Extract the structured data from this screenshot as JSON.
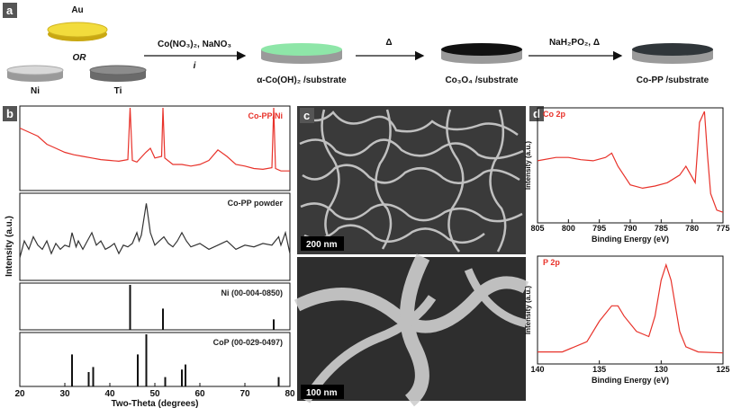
{
  "panel_a": {
    "label": "a",
    "substrates": {
      "au": "Au",
      "or": "OR",
      "ni": "Ni",
      "ti": "Ti"
    },
    "steps": [
      {
        "reagent": "Co(NO₃)₂, NaNO₃",
        "note": "i",
        "product": "α-Co(OH)₂ /substrate"
      },
      {
        "reagent": "Δ",
        "product": "Co₃O₄ /substrate"
      },
      {
        "reagent": "NaH₂PO₂, Δ",
        "product": "Co-PP /substrate"
      }
    ]
  },
  "panel_b": {
    "label": "b",
    "x_label": "Two-Theta (degrees)",
    "y_label": "Intensity (a.u.)",
    "xlim": [
      20,
      80
    ],
    "xticks": [
      20,
      30,
      40,
      50,
      60,
      70,
      80
    ],
    "plots": [
      {
        "name": "Co-PP/Ni",
        "color": "#e8322a",
        "kind": "line",
        "ylim": [
          0,
          100
        ],
        "x": [
          20,
          22,
          24,
          26,
          28,
          30,
          32,
          34,
          36,
          38,
          40,
          42,
          44,
          44.5,
          45,
          46,
          48,
          49,
          50,
          51.5,
          51.8,
          52.2,
          54,
          56,
          58,
          60,
          62,
          64,
          66,
          68,
          70,
          72,
          74,
          76,
          76.4,
          76.8,
          78,
          80
        ],
        "values": [
          75,
          70,
          65,
          55,
          50,
          45,
          42,
          40,
          38,
          36,
          35,
          34,
          36,
          100,
          35,
          33,
          45,
          50,
          38,
          40,
          100,
          38,
          30,
          30,
          28,
          30,
          35,
          48,
          40,
          30,
          28,
          25,
          24,
          26,
          100,
          25,
          22,
          22
        ]
      },
      {
        "name": "Co-PP powder",
        "color": "#333333",
        "kind": "line",
        "ylim": [
          0,
          100
        ],
        "x": [
          20,
          21,
          22,
          23,
          24,
          25,
          26,
          27,
          28,
          29,
          30,
          31,
          31.6,
          32.5,
          33,
          34,
          35,
          36,
          37,
          38,
          39,
          40,
          41,
          42,
          43,
          44,
          45,
          46,
          46.5,
          47,
          48.1,
          49,
          50,
          51,
          52,
          53,
          54,
          55,
          56,
          57,
          58,
          60,
          62,
          64,
          66,
          68,
          70,
          72,
          74,
          76,
          77.5,
          78,
          79,
          80
        ],
        "values": [
          25,
          45,
          35,
          50,
          40,
          35,
          45,
          30,
          42,
          35,
          40,
          38,
          55,
          38,
          45,
          35,
          45,
          55,
          40,
          45,
          35,
          38,
          42,
          30,
          40,
          38,
          42,
          55,
          45,
          52,
          90,
          55,
          40,
          45,
          50,
          42,
          38,
          45,
          55,
          45,
          38,
          42,
          35,
          40,
          45,
          35,
          40,
          38,
          42,
          40,
          50,
          40,
          55,
          30
        ]
      },
      {
        "name": "Ni (00-004-0850)",
        "color": "#111111",
        "kind": "sticks",
        "ylim": [
          0,
          100
        ],
        "x": [
          44.5,
          51.8,
          76.4
        ],
        "values": [
          100,
          45,
          20
        ]
      },
      {
        "name": "CoP (00-029-0497)",
        "color": "#111111",
        "kind": "sticks",
        "ylim": [
          0,
          100
        ],
        "x": [
          31.6,
          35.3,
          36.3,
          46.2,
          48.1,
          52.3,
          56.0,
          56.8,
          77.5
        ],
        "values": [
          60,
          25,
          35,
          60,
          100,
          15,
          30,
          40,
          15
        ]
      }
    ]
  },
  "panel_c": {
    "label": "c",
    "scale_bars": [
      "200 nm",
      "100 nm"
    ]
  },
  "panel_d": {
    "label": "d",
    "x_label": "Binding Energy (eV)",
    "y_label": "Intensity (a.u.)",
    "plots": [
      {
        "name": "Co 2p",
        "color": "#e8322a",
        "xlim": [
          805,
          775
        ],
        "xticks": [
          805,
          800,
          795,
          790,
          785,
          780,
          775
        ],
        "ylim": [
          0,
          100
        ],
        "x": [
          805,
          802,
          800,
          798,
          796,
          794,
          793,
          792,
          790,
          788,
          786,
          784,
          782,
          781,
          780,
          779.5,
          778.8,
          778,
          777.5,
          777,
          776,
          775
        ],
        "values": [
          55,
          58,
          58,
          56,
          55,
          58,
          62,
          50,
          33,
          30,
          32,
          35,
          42,
          50,
          40,
          35,
          90,
          100,
          60,
          25,
          10,
          8
        ]
      },
      {
        "name": "P 2p",
        "color": "#e8322a",
        "xlim": [
          140,
          125
        ],
        "xticks": [
          140,
          135,
          130,
          125
        ],
        "ylim": [
          0,
          100
        ],
        "x": [
          140,
          138,
          136,
          135,
          134,
          133.5,
          133,
          132,
          131,
          130.5,
          130,
          129.6,
          129.2,
          128.5,
          128,
          127,
          125
        ],
        "values": [
          10,
          10,
          20,
          40,
          55,
          55,
          45,
          30,
          25,
          45,
          80,
          95,
          80,
          30,
          15,
          10,
          9
        ]
      }
    ]
  }
}
